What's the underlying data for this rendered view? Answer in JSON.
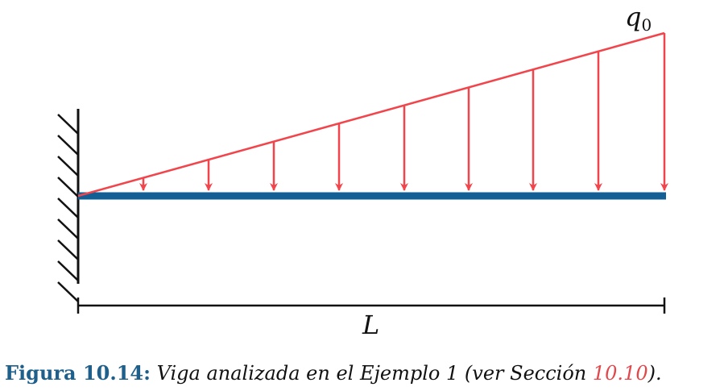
{
  "diagram": {
    "load_label": "q",
    "load_subscript": "0",
    "length_label": "L",
    "colors": {
      "load": "#f2444b",
      "beam": "#125f96",
      "support": "#111111",
      "caption_label": "#1f5f8b",
      "caption_ref": "#e2484b"
    }
  },
  "caption": {
    "label": "Figura 10.14:",
    "text": "Viga analizada en el Ejemplo 1 (ver Sección",
    "ref": "10.10",
    "end": ")."
  }
}
